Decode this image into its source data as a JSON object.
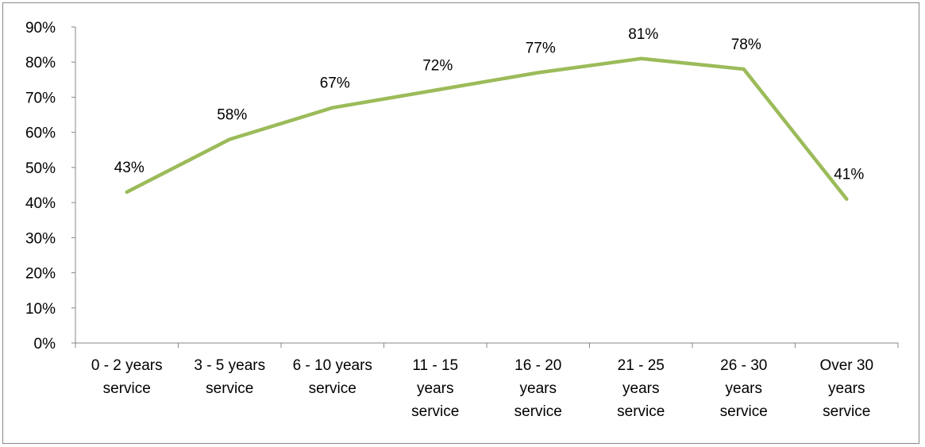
{
  "chart_data": {
    "type": "line",
    "categories": [
      [
        "0 - 2 years",
        "service"
      ],
      [
        "3 - 5 years",
        "service"
      ],
      [
        "6 - 10 years",
        "service"
      ],
      [
        "11 - 15",
        "years",
        "service"
      ],
      [
        "16 - 20",
        "years",
        "service"
      ],
      [
        "21 - 25",
        "years",
        "service"
      ],
      [
        "26 - 30",
        "years",
        "service"
      ],
      [
        "Over 30",
        "years",
        "service"
      ]
    ],
    "series": [
      {
        "values": [
          43,
          58,
          67,
          72,
          77,
          81,
          78,
          41
        ],
        "data_labels": [
          "43%",
          "58%",
          "67%",
          "72%",
          "77%",
          "81%",
          "78%",
          "41%"
        ],
        "color": "#9bbb59"
      }
    ],
    "y_ticks": [
      "0%",
      "10%",
      "20%",
      "30%",
      "40%",
      "50%",
      "60%",
      "70%",
      "80%",
      "90%"
    ],
    "ylim": [
      0,
      90
    ],
    "grid": false,
    "legend": "none",
    "axis_color": "#878787"
  }
}
